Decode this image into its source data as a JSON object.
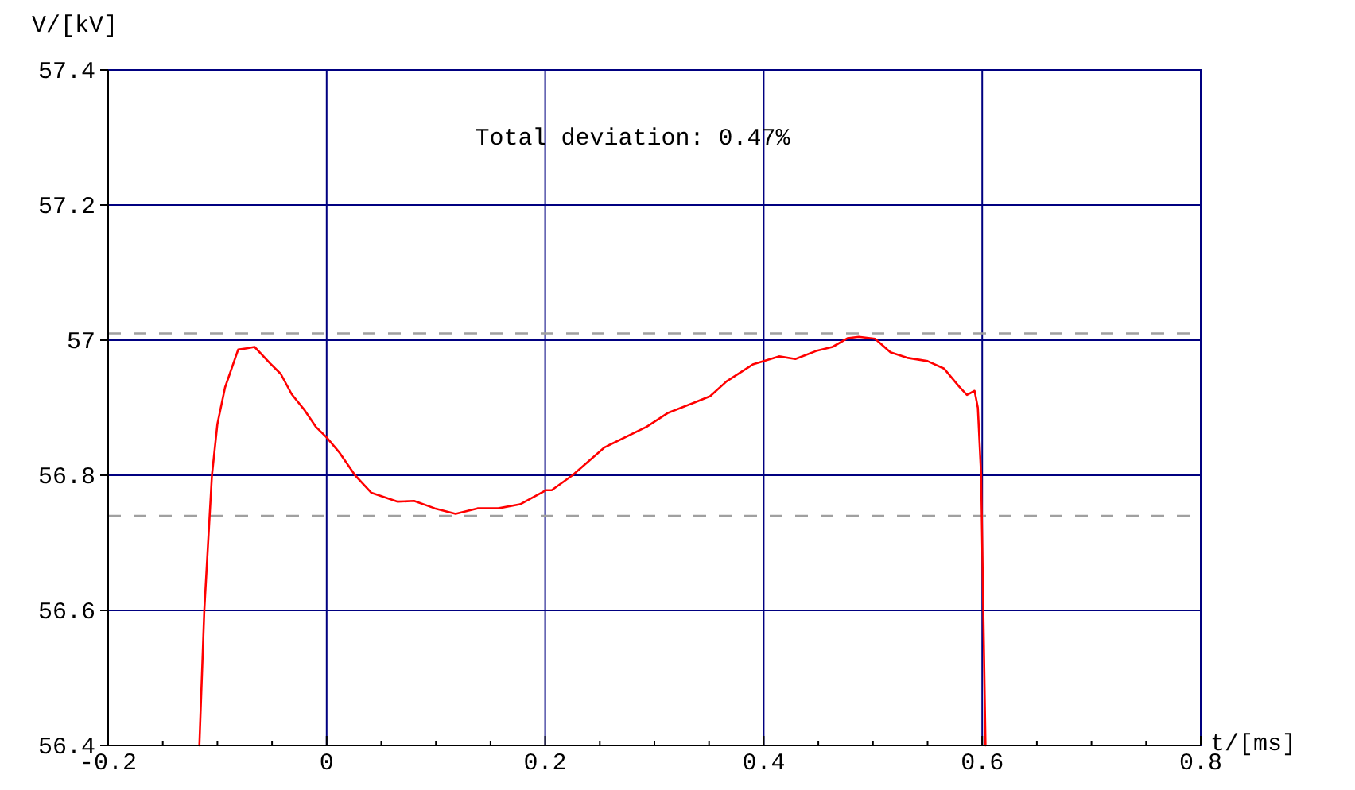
{
  "chart_data": {
    "type": "line",
    "xlabel": "t/[ms]",
    "ylabel": "V/[kV]",
    "annotations": [
      "Total deviation: 0.47%"
    ],
    "xlim": [
      -0.2,
      0.8
    ],
    "ylim": [
      56.4,
      57.4
    ],
    "xticks": [
      -0.2,
      {
        "value": -0.15,
        "label": null
      },
      {
        "value": -0.1,
        "label": null
      },
      {
        "value": -0.05,
        "label": null
      },
      0,
      {
        "value": 0.05,
        "label": null
      },
      {
        "value": 0.1,
        "label": null
      },
      {
        "value": 0.15,
        "label": null
      },
      0.2,
      {
        "value": 0.25,
        "label": null
      },
      {
        "value": 0.3,
        "label": null
      },
      {
        "value": 0.35,
        "label": null
      },
      0.4,
      {
        "value": 0.45,
        "label": null
      },
      {
        "value": 0.5,
        "label": null
      },
      {
        "value": 0.55,
        "label": null
      },
      0.6,
      {
        "value": 0.65,
        "label": null
      },
      {
        "value": 0.7,
        "label": null
      },
      {
        "value": 0.75,
        "label": null
      },
      0.8
    ],
    "yticks": [
      56.4,
      56.6,
      56.8,
      57,
      57.2,
      57.4
    ],
    "grid": true,
    "marker": "none",
    "line_style": "solid",
    "ref_lines": [
      {
        "axis": "y",
        "value": 57.01,
        "color": "#a0a0a0",
        "line_style": "dashed"
      },
      {
        "axis": "y",
        "value": 56.74,
        "color": "#a0a0a0",
        "line_style": "dashed"
      }
    ],
    "series": [
      {
        "color": "#ff0000",
        "x": [
          -0.1165,
          -0.112,
          -0.105,
          -0.1,
          -0.093,
          -0.081,
          -0.073,
          -0.066,
          -0.052,
          -0.042,
          -0.032,
          -0.02,
          -0.01,
          0,
          0.012,
          0.026,
          0.041,
          0.065,
          0.08,
          0.099,
          0.118,
          0.138,
          0.157,
          0.177,
          0.201,
          0.206,
          0.225,
          0.254,
          0.293,
          0.312,
          0.337,
          0.351,
          0.366,
          0.39,
          0.414,
          0.429,
          0.448,
          0.463,
          0.477,
          0.487,
          0.502,
          0.516,
          0.531,
          0.55,
          0.565,
          0.579,
          0.586,
          0.593,
          0.596,
          0.599,
          0.601,
          0.603
        ],
        "values": [
          56.4,
          56.6,
          56.8,
          56.876,
          56.93,
          56.986,
          56.988,
          56.99,
          56.966,
          56.95,
          56.92,
          56.896,
          56.872,
          56.856,
          56.833,
          56.8,
          56.774,
          56.761,
          56.762,
          56.751,
          56.743,
          56.751,
          56.751,
          56.757,
          56.778,
          56.778,
          56.8,
          56.841,
          56.872,
          56.892,
          56.908,
          56.917,
          56.939,
          56.964,
          56.976,
          56.972,
          56.984,
          56.99,
          57.003,
          57.005,
          57.002,
          56.982,
          56.974,
          56.969,
          56.958,
          56.931,
          56.919,
          56.925,
          56.9,
          56.8,
          56.6,
          56.4
        ]
      }
    ]
  }
}
